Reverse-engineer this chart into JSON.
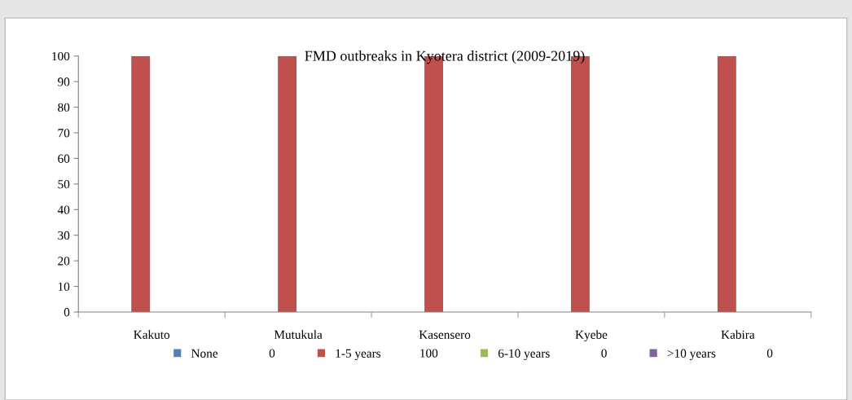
{
  "chart_data": {
    "type": "bar",
    "title": "FMD outbreaks in Kyotera district (2009-2019)",
    "categories": [
      "Kakuto",
      "Mutukula",
      "Kasensero",
      "Kyebe",
      "Kabira"
    ],
    "series": [
      {
        "name": "None",
        "color": "#4f81bd",
        "values": [
          0,
          0,
          0,
          0,
          0
        ]
      },
      {
        "name": "1-5 years",
        "color": "#c0504d",
        "values": [
          100,
          100,
          100,
          100,
          100
        ]
      },
      {
        "name": "6-10 years",
        "color": "#9bbb59",
        "values": [
          0,
          0,
          0,
          0,
          0
        ]
      },
      {
        "name": ">10 years",
        "color": "#8064a2",
        "values": [
          0,
          0,
          0,
          0,
          0
        ]
      }
    ],
    "annotations": [
      "0",
      "100",
      "0",
      "0"
    ],
    "ylim": [
      0,
      100
    ],
    "yticks": [
      0,
      10,
      20,
      30,
      40,
      50,
      60,
      70,
      80,
      90,
      100
    ],
    "grid": false,
    "legend": "bottom"
  }
}
